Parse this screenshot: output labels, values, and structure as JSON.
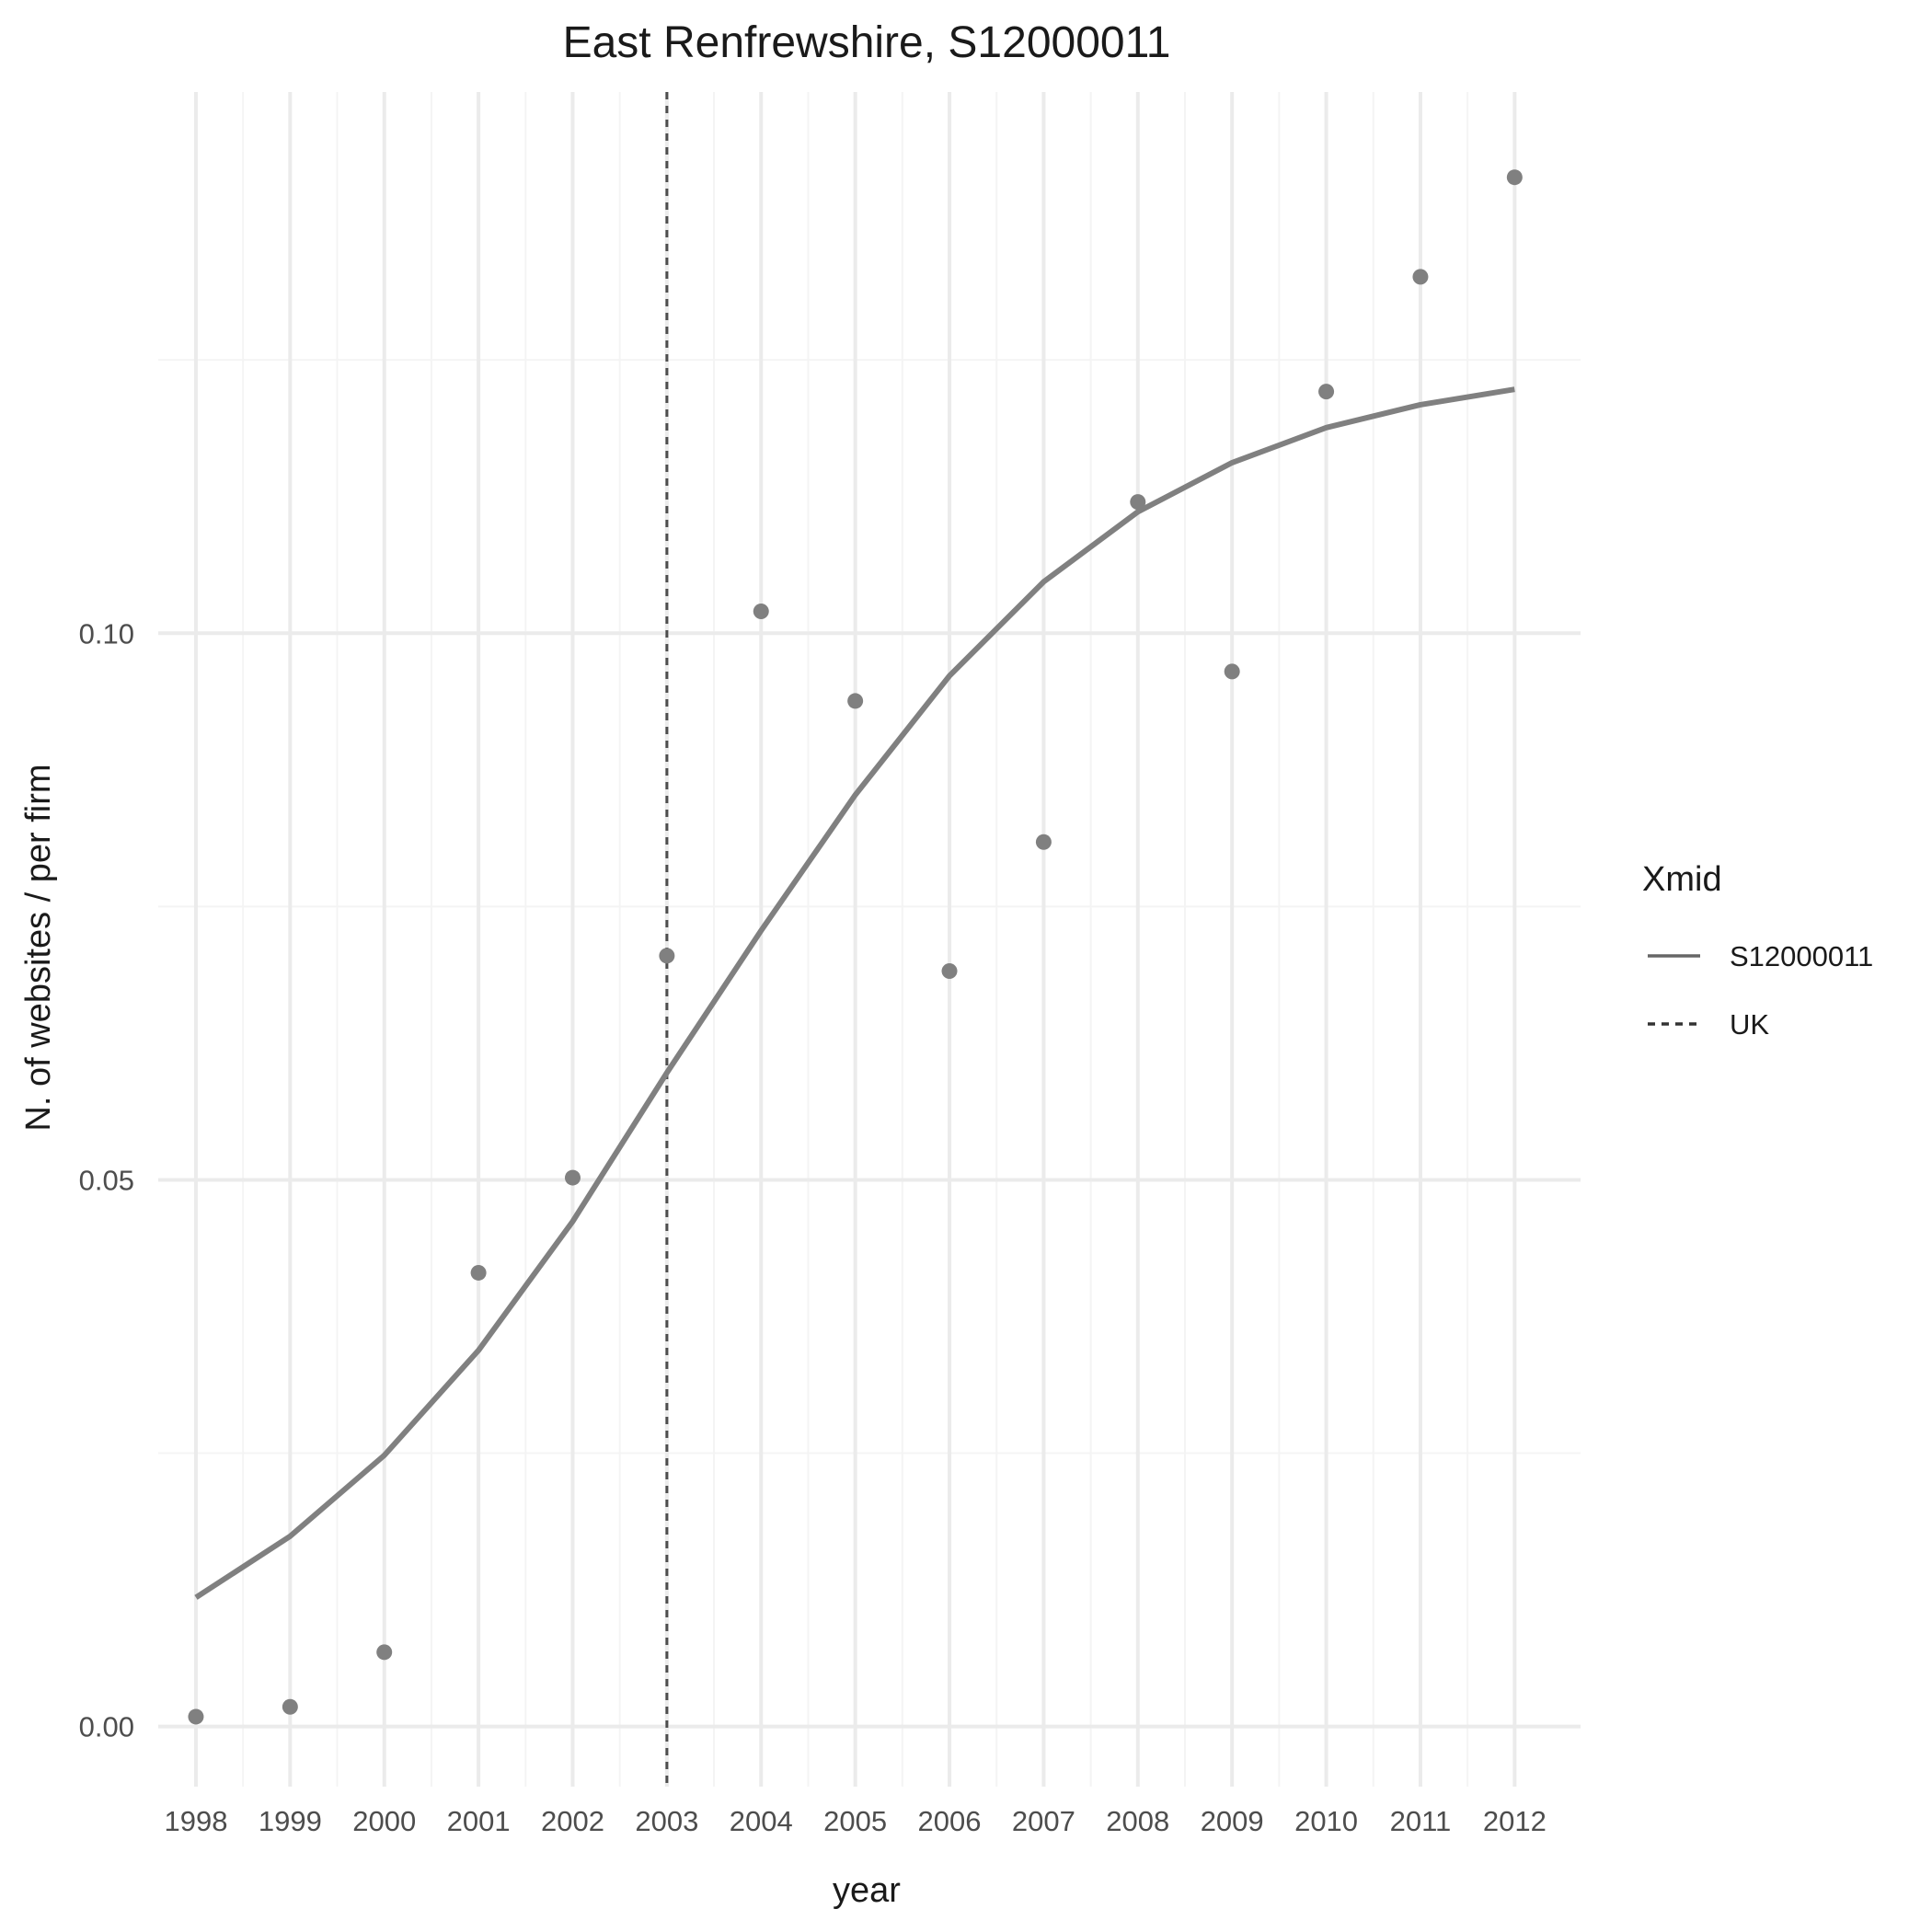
{
  "chart_data": {
    "type": "line",
    "title": "East Renfrewshire, S12000011",
    "xlabel": "year",
    "ylabel": "N. of websites / per firm",
    "x": [
      1998,
      1999,
      2000,
      2001,
      2002,
      2003,
      2004,
      2005,
      2006,
      2007,
      2008,
      2009,
      2010,
      2011,
      2012
    ],
    "x_tick_labels": [
      "1998",
      "1999",
      "2000",
      "2001",
      "2002",
      "2003",
      "2004",
      "2005",
      "2006",
      "2007",
      "2008",
      "2009",
      "2010",
      "2011",
      "2012"
    ],
    "y_ticks": [
      0.0,
      0.05,
      0.1
    ],
    "y_tick_labels": [
      "0.00",
      "0.05",
      "0.10"
    ],
    "xlim": [
      1997.6,
      2012.7
    ],
    "ylim": [
      -0.0055,
      0.1495
    ],
    "grid": true,
    "series": [
      {
        "name": "S12000011",
        "style": "solid",
        "color": "#808080",
        "smoothed": [
          0.0118,
          0.0174,
          0.0248,
          0.0344,
          0.0462,
          0.0598,
          0.0728,
          0.0852,
          0.0961,
          0.1047,
          0.1111,
          0.1156,
          0.1188,
          0.1209,
          0.1223
        ],
        "points": [
          0.0009,
          0.0018,
          0.0068,
          0.0415,
          0.0502,
          0.0705,
          0.102,
          0.0938,
          0.0691,
          0.0809,
          0.112,
          0.0965,
          0.1221,
          0.1326,
          0.1417
        ]
      }
    ],
    "vlines": [
      {
        "name": "UK",
        "x": 2003,
        "style": "dashed",
        "color": "#4d4d4d"
      }
    ],
    "legend": {
      "title": "Xmid",
      "position": "right",
      "entries": [
        {
          "label": "S12000011",
          "style": "solid",
          "color": "#666666"
        },
        {
          "label": "UK",
          "style": "dashed",
          "color": "#333333"
        }
      ]
    },
    "colors": {
      "background": "#ffffff",
      "grid_major": "#ebebeb",
      "grid_minor": "#f4f4f4",
      "line": "#808080",
      "points": "#808080",
      "vline": "#4d4d4d"
    }
  }
}
